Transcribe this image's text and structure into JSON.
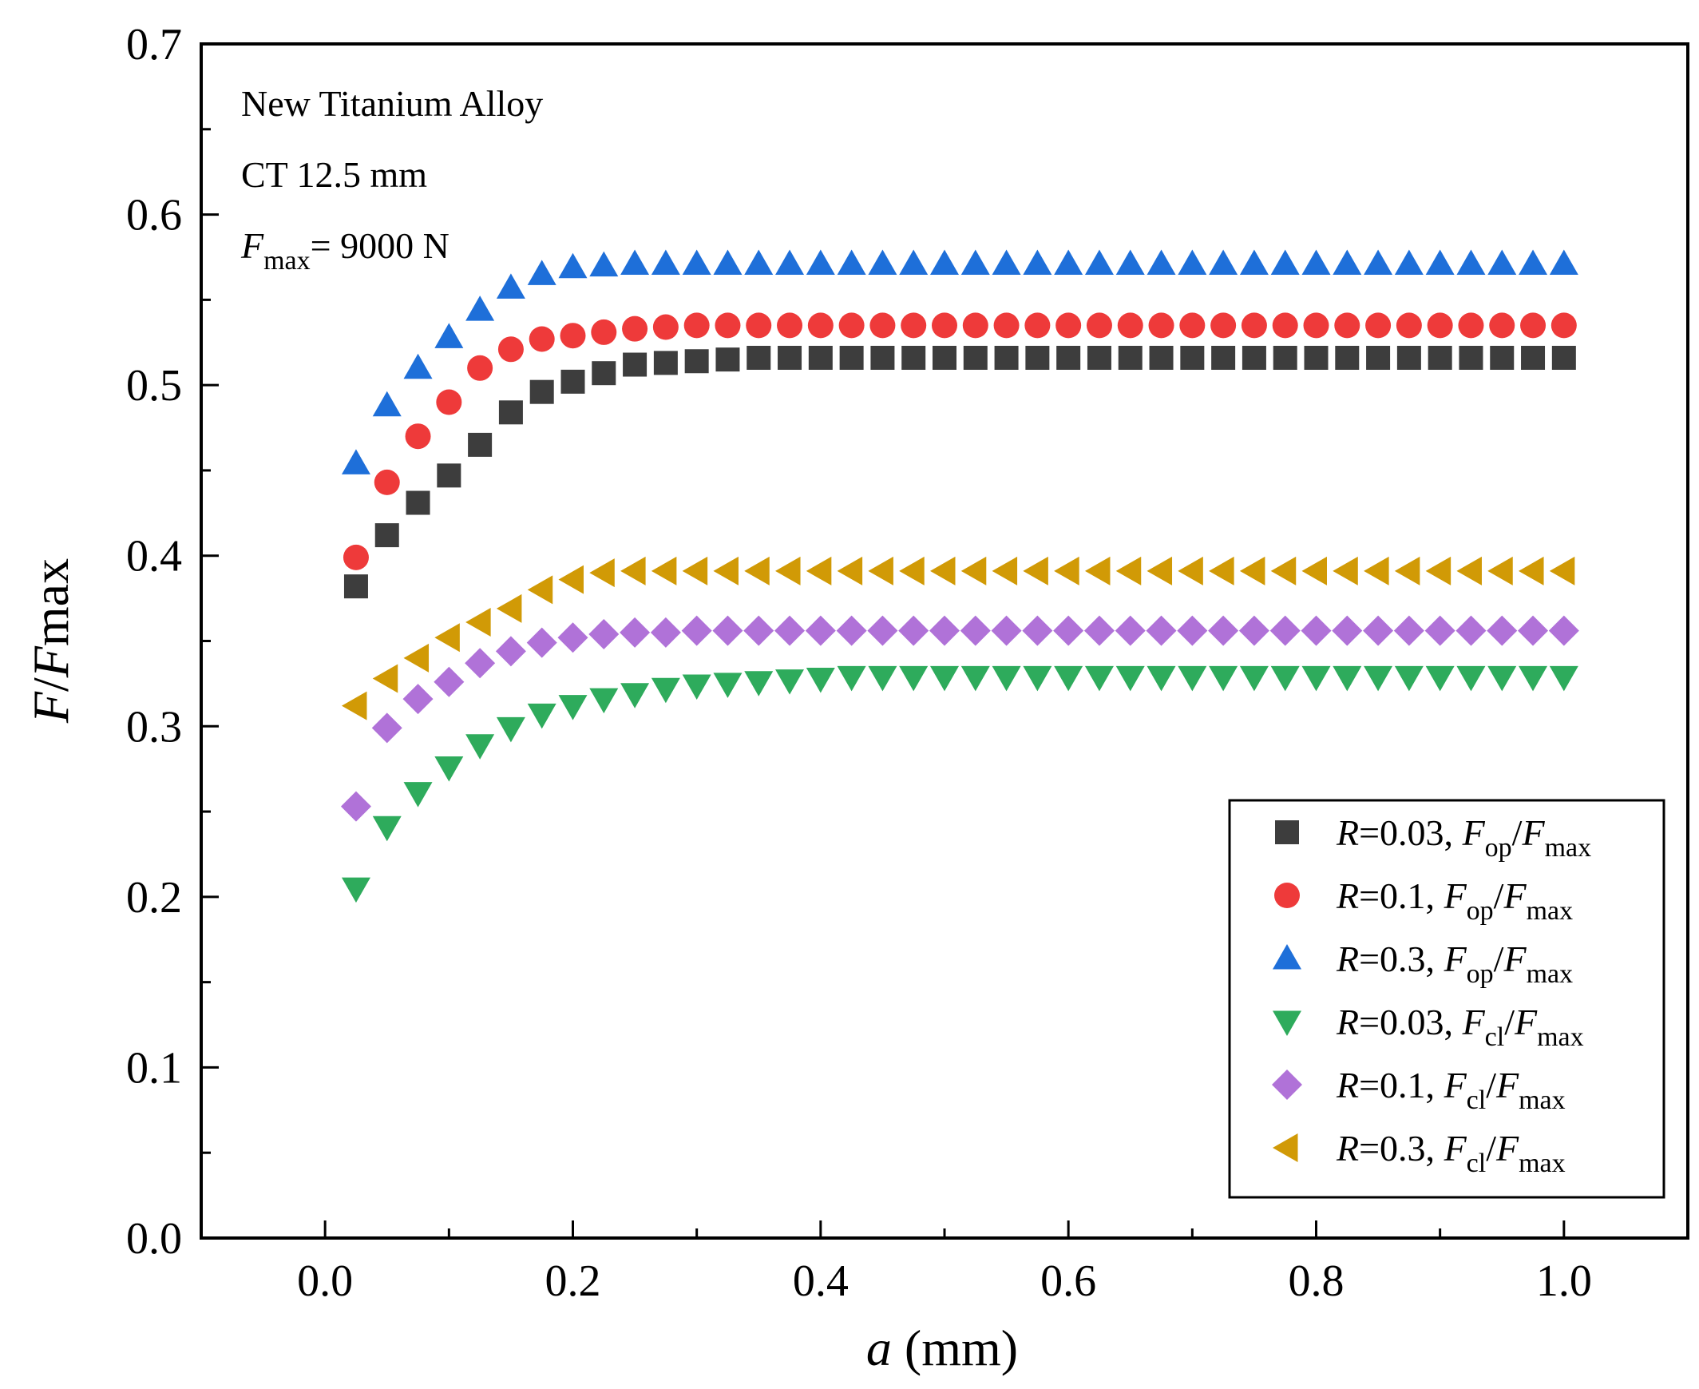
{
  "chart_data": {
    "type": "scatter",
    "x_axis": {
      "label": "(mm)",
      "label_var": "a",
      "range": [
        -0.1,
        1.1
      ],
      "ticks": [
        0.0,
        0.2,
        0.4,
        0.6,
        0.8,
        1.0
      ],
      "tick_labels": [
        "0.0",
        "0.2",
        "0.4",
        "0.6",
        "0.8",
        "1.0"
      ]
    },
    "y_axis": {
      "label_main": "F",
      "label_slash": "/",
      "label_var": "F",
      "label_sub": "max",
      "range": [
        0.0,
        0.7
      ],
      "ticks": [
        0.0,
        0.1,
        0.2,
        0.3,
        0.4,
        0.5,
        0.6,
        0.7
      ],
      "tick_labels": [
        "0.0",
        "0.1",
        "0.2",
        "0.3",
        "0.4",
        "0.5",
        "0.6",
        "0.7"
      ]
    },
    "grid": false,
    "legend_position": "bottom-right",
    "annotations": {
      "line1": "New Titanium Alloy",
      "line2": "CT 12.5 mm",
      "line3_var": "F",
      "line3_sub": "max",
      "line3_rest": "= 9000 N"
    },
    "x": [
      0.025,
      0.05,
      0.075,
      0.1,
      0.125,
      0.15,
      0.175,
      0.2,
      0.225,
      0.25,
      0.275,
      0.3,
      0.325,
      0.35,
      0.375,
      0.4,
      0.425,
      0.45,
      0.475,
      0.5,
      0.525,
      0.55,
      0.575,
      0.6,
      0.625,
      0.65,
      0.675,
      0.7,
      0.725,
      0.75,
      0.775,
      0.8,
      0.825,
      0.85,
      0.875,
      0.9,
      0.925,
      0.95,
      0.975,
      1.0
    ],
    "series": [
      {
        "legend_r": "0.03",
        "legend_f": "op",
        "color": "#3d3d3d",
        "marker": "square",
        "values": [
          0.382,
          0.412,
          0.431,
          0.447,
          0.465,
          0.484,
          0.496,
          0.502,
          0.507,
          0.512,
          0.513,
          0.514,
          0.515,
          0.516,
          0.516,
          0.516,
          0.516,
          0.516,
          0.516,
          0.516,
          0.516,
          0.516,
          0.516,
          0.516,
          0.516,
          0.516,
          0.516,
          0.516,
          0.516,
          0.516,
          0.516,
          0.516,
          0.516,
          0.516,
          0.516,
          0.516,
          0.516,
          0.516,
          0.516,
          0.516
        ]
      },
      {
        "legend_r": "0.1",
        "legend_f": "op",
        "color": "#ee3a3a",
        "marker": "circle",
        "values": [
          0.399,
          0.443,
          0.47,
          0.49,
          0.51,
          0.521,
          0.527,
          0.529,
          0.531,
          0.533,
          0.534,
          0.535,
          0.535,
          0.535,
          0.535,
          0.535,
          0.535,
          0.535,
          0.535,
          0.535,
          0.535,
          0.535,
          0.535,
          0.535,
          0.535,
          0.535,
          0.535,
          0.535,
          0.535,
          0.535,
          0.535,
          0.535,
          0.535,
          0.535,
          0.535,
          0.535,
          0.535,
          0.535,
          0.535,
          0.535
        ]
      },
      {
        "legend_r": "0.3",
        "legend_f": "op",
        "color": "#1e6fd9",
        "marker": "triangle-up",
        "values": [
          0.454,
          0.488,
          0.51,
          0.528,
          0.544,
          0.557,
          0.565,
          0.569,
          0.57,
          0.571,
          0.571,
          0.571,
          0.571,
          0.571,
          0.571,
          0.571,
          0.571,
          0.571,
          0.571,
          0.571,
          0.571,
          0.571,
          0.571,
          0.571,
          0.571,
          0.571,
          0.571,
          0.571,
          0.571,
          0.571,
          0.571,
          0.571,
          0.571,
          0.571,
          0.571,
          0.571,
          0.571,
          0.571,
          0.571,
          0.571
        ]
      },
      {
        "legend_r": "0.03",
        "legend_f": "cl",
        "color": "#2eab5c",
        "marker": "triangle-down",
        "values": [
          0.205,
          0.241,
          0.261,
          0.276,
          0.289,
          0.299,
          0.307,
          0.312,
          0.316,
          0.319,
          0.322,
          0.324,
          0.325,
          0.326,
          0.327,
          0.328,
          0.329,
          0.329,
          0.329,
          0.329,
          0.329,
          0.329,
          0.329,
          0.329,
          0.329,
          0.329,
          0.329,
          0.329,
          0.329,
          0.329,
          0.329,
          0.329,
          0.329,
          0.329,
          0.329,
          0.329,
          0.329,
          0.329,
          0.329,
          0.329
        ]
      },
      {
        "legend_r": "0.1",
        "legend_f": "cl",
        "color": "#b072d8",
        "marker": "diamond",
        "values": [
          0.253,
          0.299,
          0.316,
          0.326,
          0.337,
          0.344,
          0.349,
          0.352,
          0.354,
          0.355,
          0.355,
          0.356,
          0.356,
          0.356,
          0.356,
          0.356,
          0.356,
          0.356,
          0.356,
          0.356,
          0.356,
          0.356,
          0.356,
          0.356,
          0.356,
          0.356,
          0.356,
          0.356,
          0.356,
          0.356,
          0.356,
          0.356,
          0.356,
          0.356,
          0.356,
          0.356,
          0.356,
          0.356,
          0.356,
          0.356
        ]
      },
      {
        "legend_r": "0.3",
        "legend_f": "cl",
        "color": "#d19a06",
        "marker": "triangle-left",
        "values": [
          0.312,
          0.328,
          0.34,
          0.352,
          0.361,
          0.369,
          0.38,
          0.386,
          0.39,
          0.391,
          0.391,
          0.391,
          0.391,
          0.391,
          0.391,
          0.391,
          0.391,
          0.391,
          0.391,
          0.391,
          0.391,
          0.391,
          0.391,
          0.391,
          0.391,
          0.391,
          0.391,
          0.391,
          0.391,
          0.391,
          0.391,
          0.391,
          0.391,
          0.391,
          0.391,
          0.391,
          0.391,
          0.391,
          0.391,
          0.391
        ]
      }
    ],
    "legend_label_prefix": "R",
    "legend_label_eq": "=",
    "legend_label_sep": ",",
    "legend_label_f": "F",
    "legend_label_slash": "/",
    "legend_label_max": "max"
  }
}
